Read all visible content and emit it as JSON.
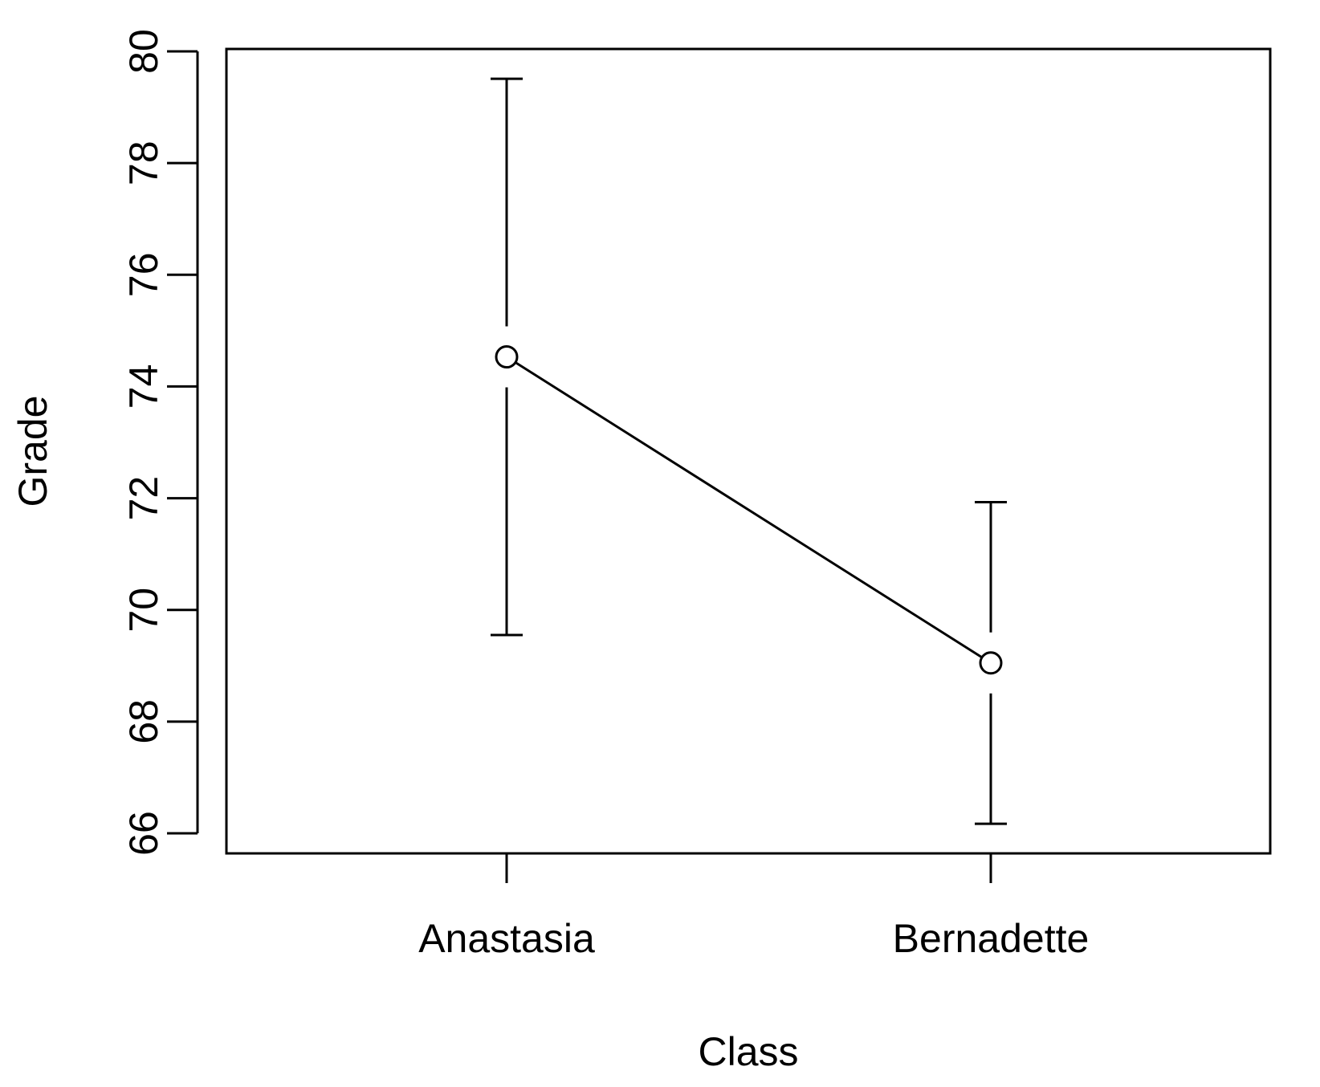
{
  "chart_data": {
    "type": "line",
    "categories": [
      "Anastasia",
      "Bernadette"
    ],
    "series": [
      {
        "values": [
          74.53,
          69.05
        ],
        "ci_lower": [
          69.55,
          66.17
        ],
        "ci_upper": [
          79.51,
          71.93
        ]
      }
    ],
    "xlabel": "Class",
    "ylabel": "Grade",
    "ylim": [
      66,
      80
    ],
    "yticks": [
      66,
      68,
      70,
      72,
      74,
      76,
      78,
      80
    ],
    "grid": false,
    "markers": "open-circle",
    "error_bars": true
  }
}
